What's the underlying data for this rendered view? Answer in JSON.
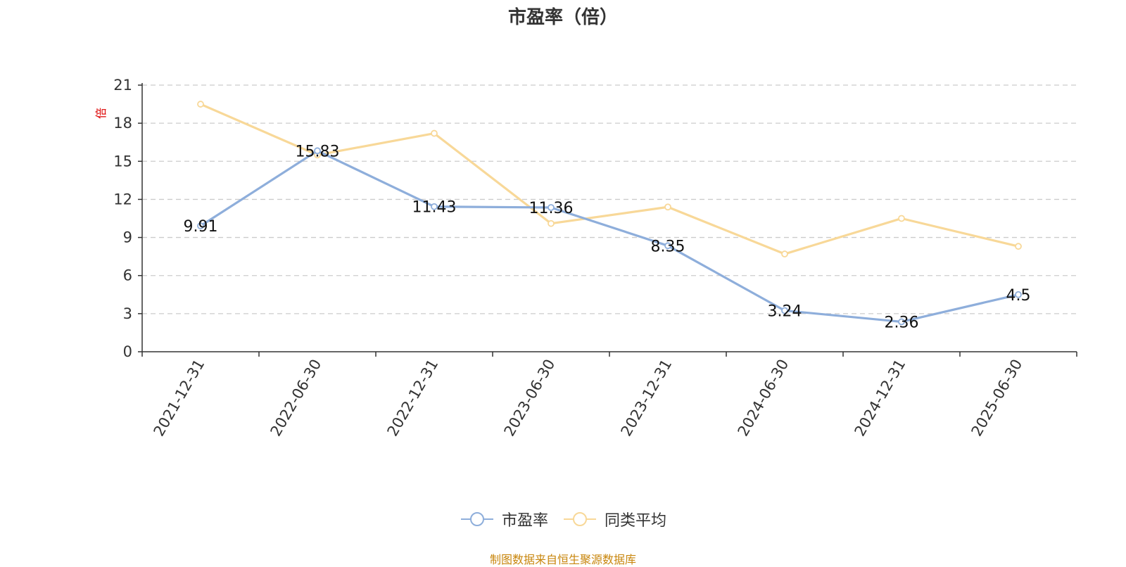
{
  "chart_data": {
    "type": "line",
    "title": "市盈率（倍）",
    "ylabel": "倍",
    "xlabel": "",
    "ylim": [
      0,
      21
    ],
    "yticks": [
      0,
      3,
      6,
      9,
      12,
      15,
      18,
      21
    ],
    "categories": [
      "2021-12-31",
      "2022-06-30",
      "2022-12-31",
      "2023-06-30",
      "2023-12-31",
      "2024-06-30",
      "2024-12-31",
      "2025-06-30"
    ],
    "series": [
      {
        "name": "市盈率",
        "color": "#8eaedb",
        "values": [
          9.91,
          15.83,
          11.43,
          11.36,
          8.35,
          3.24,
          2.36,
          4.5
        ],
        "labels": [
          "9.91",
          "15.83",
          "11.43",
          "11.36",
          "8.35",
          "3.24",
          "2.36",
          "4.5"
        ]
      },
      {
        "name": "同类平均",
        "color": "#f8d898",
        "values": [
          19.5,
          15.5,
          17.2,
          10.1,
          11.4,
          7.7,
          10.5,
          8.3
        ]
      }
    ],
    "grid": true,
    "legend": "bottom-center"
  },
  "footer": {
    "source": "制图数据来自恒生聚源数据库"
  },
  "colors": {
    "axis": "#333333",
    "grid": "#cccccc",
    "ylabel": "#dd0000",
    "source": "#c8860d"
  }
}
